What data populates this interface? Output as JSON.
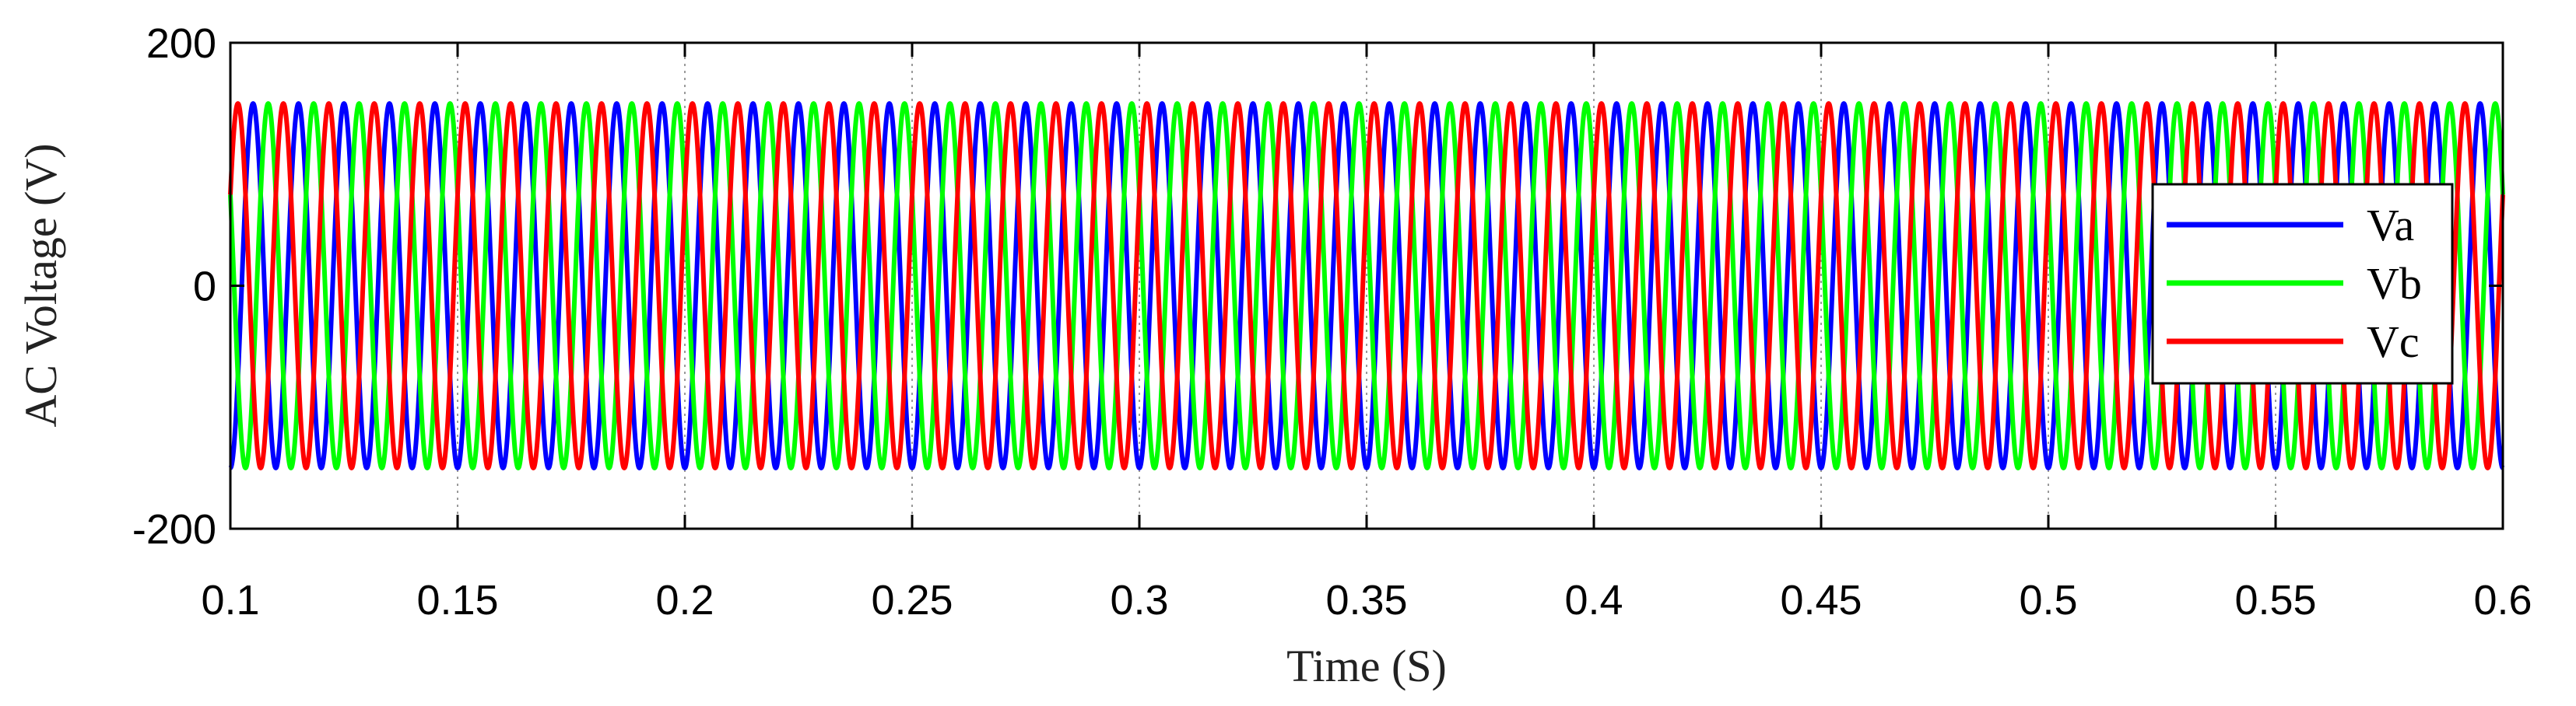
{
  "chart_data": {
    "type": "line",
    "title": "",
    "xlabel": "Time (S)",
    "ylabel": "AC Voltage (V)",
    "xlim": [
      0.1,
      0.6
    ],
    "ylim": [
      -200,
      200
    ],
    "xticks": [
      "0.1",
      "0.15",
      "0.2",
      "0.25",
      "0.3",
      "0.35",
      "0.4",
      "0.45",
      "0.5",
      "0.55",
      "0.6"
    ],
    "yticks": [
      "-200",
      "0",
      "200"
    ],
    "grid": "dotted vertical at x ticks",
    "legend_position": "right",
    "amplitude": 150,
    "frequency_hz": 100,
    "series": [
      {
        "name": "Va",
        "color": "#0000ff",
        "phase_deg": -90
      },
      {
        "name": "Vb",
        "color": "#00ff00",
        "phase_deg": -210
      },
      {
        "name": "Vc",
        "color": "#ff0000",
        "phase_deg": 30
      }
    ]
  }
}
